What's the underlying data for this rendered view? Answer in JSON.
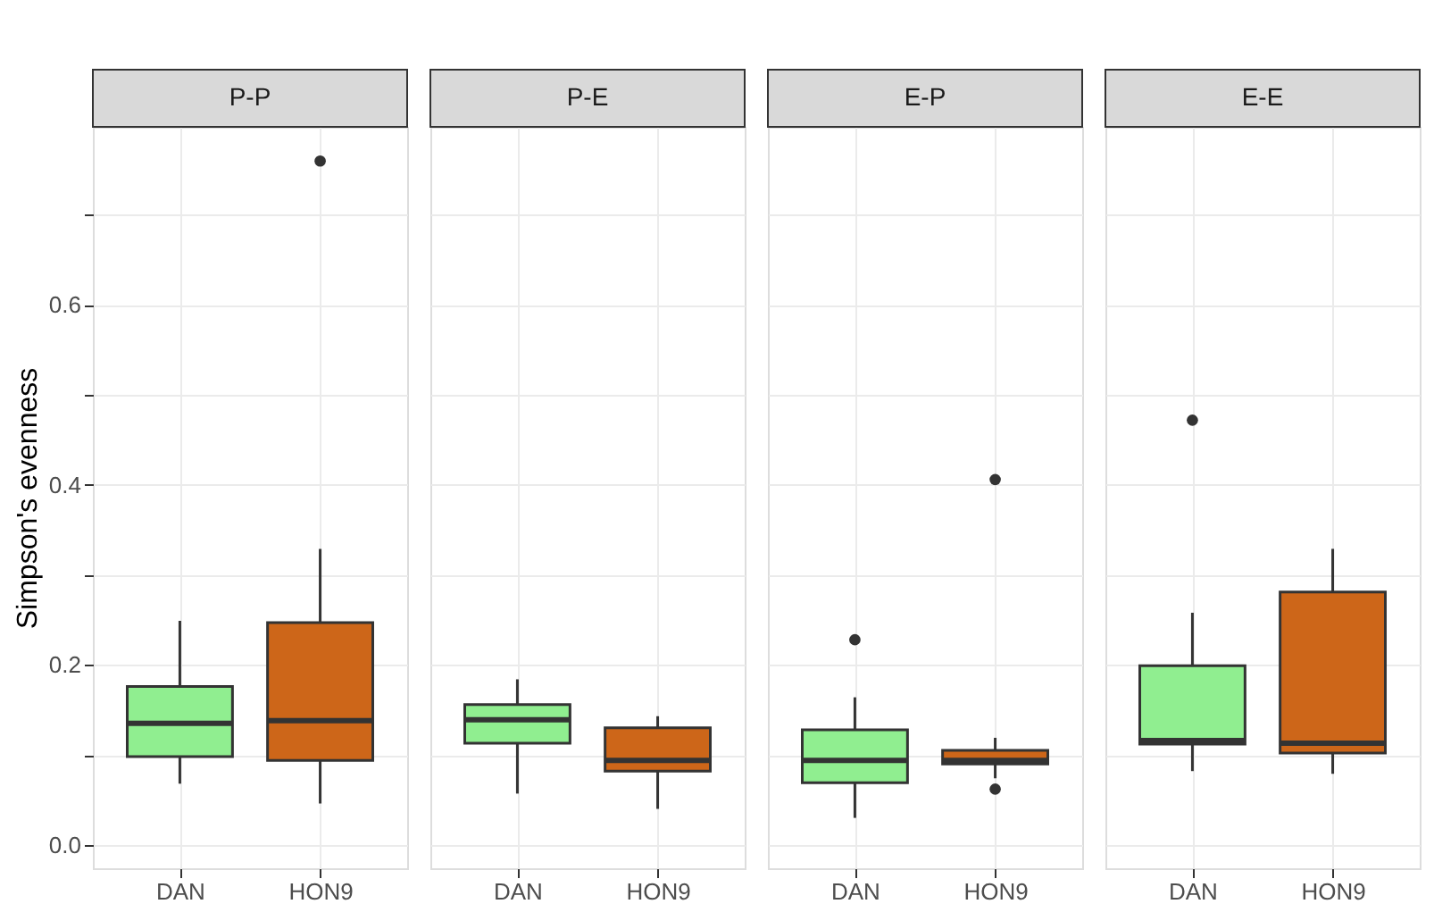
{
  "chart_data": [
    {
      "type": "box",
      "title": "P-P",
      "ylabel": "Simpson's evenness",
      "categories": [
        "DAN",
        "HON9"
      ],
      "colors": [
        "#90ee90",
        "#cd6619"
      ],
      "ylim": [
        -0.026,
        0.798
      ],
      "yticks": [
        {
          "value": 0,
          "label": "0.0"
        },
        {
          "value": 0.1,
          "label": null
        },
        {
          "value": 0.2,
          "label": "0.2"
        },
        {
          "value": 0.3,
          "label": null
        },
        {
          "value": 0.4,
          "label": "0.4"
        },
        {
          "value": 0.5,
          "label": null
        },
        {
          "value": 0.6,
          "label": "0.6"
        },
        {
          "value": 0.7,
          "label": null
        }
      ],
      "grid": true,
      "boxes": [
        {
          "low": 0.068,
          "q1": 0.098,
          "median": 0.135,
          "q3": 0.176,
          "high": 0.249
        },
        {
          "low": 0.046,
          "q1": 0.094,
          "median": 0.138,
          "q3": 0.247,
          "high": 0.329,
          "outliers": [
            0.76
          ]
        }
      ]
    },
    {
      "type": "box",
      "title": "P-E",
      "categories": [
        "DAN",
        "HON9"
      ],
      "colors": [
        "#90ee90",
        "#cd6619"
      ],
      "ylim": [
        -0.026,
        0.798
      ],
      "yticks": [
        0,
        0.1,
        0.2,
        0.3,
        0.4,
        0.5,
        0.6,
        0.7
      ],
      "grid": true,
      "tick_labels": "x",
      "boxes": [
        {
          "low": 0.057,
          "q1": 0.113,
          "median": 0.139,
          "q3": 0.156,
          "high": 0.184
        },
        {
          "low": 0.04,
          "q1": 0.082,
          "median": 0.094,
          "q3": 0.13,
          "high": 0.143
        }
      ]
    },
    {
      "type": "box",
      "title": "E-P",
      "categories": [
        "DAN",
        "HON9"
      ],
      "colors": [
        "#90ee90",
        "#cd6619"
      ],
      "ylim": [
        -0.026,
        0.798
      ],
      "yticks": [
        0,
        0.1,
        0.2,
        0.3,
        0.4,
        0.5,
        0.6,
        0.7
      ],
      "grid": true,
      "tick_labels": "x",
      "boxes": [
        {
          "low": 0.03,
          "q1": 0.069,
          "median": 0.094,
          "q3": 0.128,
          "high": 0.164,
          "outliers": [
            0.228
          ]
        },
        {
          "low": 0.074,
          "q1": 0.09,
          "median": 0.094,
          "q3": 0.105,
          "high": 0.119,
          "outliers": [
            0.406,
            0.062
          ]
        }
      ]
    },
    {
      "type": "box",
      "title": "E-E",
      "categories": [
        "DAN",
        "HON9"
      ],
      "colors": [
        "#90ee90",
        "#cd6619"
      ],
      "ylim": [
        -0.026,
        0.798
      ],
      "yticks": [
        0,
        0.1,
        0.2,
        0.3,
        0.4,
        0.5,
        0.6,
        0.7
      ],
      "grid": true,
      "tick_labels": "x",
      "boxes": [
        {
          "low": 0.082,
          "q1": 0.112,
          "median": 0.116,
          "q3": 0.199,
          "high": 0.258,
          "outliers": [
            0.472
          ]
        },
        {
          "low": 0.079,
          "q1": 0.102,
          "median": 0.113,
          "q3": 0.281,
          "high": 0.329
        }
      ]
    }
  ]
}
